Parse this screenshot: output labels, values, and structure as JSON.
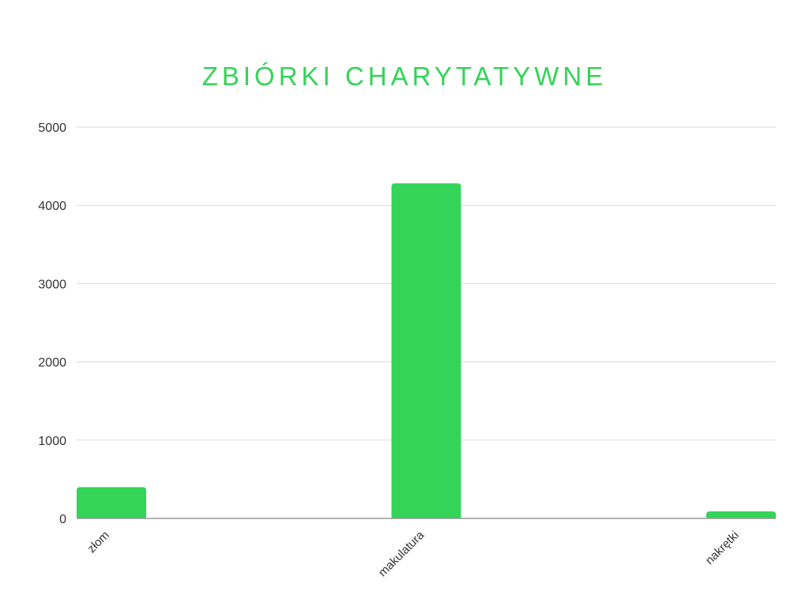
{
  "chart_data": {
    "type": "bar",
    "title": "ZBIÓRKI CHARYTATYWNE",
    "categories": [
      "złom",
      "makulatura",
      "nakrętki"
    ],
    "values": [
      400,
      4280,
      90
    ],
    "ylim": [
      0,
      5000
    ],
    "yticks": [
      0,
      1000,
      2000,
      3000,
      4000,
      5000
    ],
    "grid": true,
    "colors": {
      "bar": "#33d457",
      "title": "#33d457",
      "grid": "#d9d9d9",
      "axis": "#999999"
    }
  }
}
